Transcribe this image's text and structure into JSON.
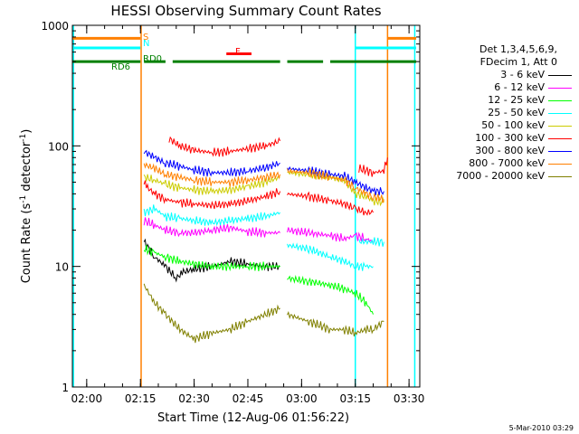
{
  "chart_data": {
    "type": "line",
    "title": "HESSI Observing Summary Count Rates",
    "xlabel": "Start Time (12-Aug-06 01:56:22)",
    "ylabel_prefix": "Count Rate (s",
    "ylabel_sup1": "-1",
    "ylabel_mid": " detector",
    "ylabel_sup2": "-1",
    "ylabel_suffix": ")",
    "yscale": "log",
    "ylim": [
      1,
      1000
    ],
    "xlim_minutes": [
      116,
      213
    ],
    "xticks": [
      {
        "label": "02:00",
        "minute": 120
      },
      {
        "label": "02:15",
        "minute": 135
      },
      {
        "label": "02:30",
        "minute": 150
      },
      {
        "label": "02:45",
        "minute": 165
      },
      {
        "label": "03:00",
        "minute": 180
      },
      {
        "label": "03:15",
        "minute": 195
      },
      {
        "label": "03:30",
        "minute": 210
      }
    ],
    "yticks": [
      {
        "label": "1",
        "value": 1
      },
      {
        "label": "10",
        "value": 10
      },
      {
        "label": "100",
        "value": 100
      },
      {
        "label": "1000",
        "value": 1000
      }
    ],
    "legend_header": [
      "Det 1,3,4,5,6,9,",
      "FDecim 1, Att 0"
    ],
    "series": [
      {
        "name": "3 - 6 keV",
        "color": "#000000",
        "segments": [
          [
            [
              136,
              16
            ],
            [
              139,
              12
            ],
            [
              142,
              10
            ],
            [
              145,
              8
            ],
            [
              147,
              9
            ],
            [
              150,
              9.5
            ],
            [
              155,
              10
            ],
            [
              160,
              11
            ],
            [
              165,
              10.5
            ],
            [
              170,
              10
            ],
            [
              174,
              10
            ]
          ]
        ]
      },
      {
        "name": "6 - 12 keV",
        "color": "#ff00ff",
        "segments": [
          [
            [
              136,
              24
            ],
            [
              139,
              22
            ],
            [
              142,
              20
            ],
            [
              146,
              19
            ],
            [
              150,
              19
            ],
            [
              155,
              20
            ],
            [
              160,
              21
            ],
            [
              165,
              19.5
            ],
            [
              170,
              19
            ],
            [
              174,
              19
            ]
          ],
          [
            [
              176,
              20
            ],
            [
              182,
              19
            ],
            [
              188,
              18
            ],
            [
              192,
              17
            ],
            [
              195,
              18
            ],
            [
              198,
              17
            ],
            [
              200,
              16
            ]
          ]
        ]
      },
      {
        "name": "12 - 25 keV",
        "color": "#00ff00",
        "segments": [
          [
            [
              136,
              14
            ],
            [
              139,
              13
            ],
            [
              142,
              12
            ],
            [
              146,
              11
            ],
            [
              150,
              10.5
            ],
            [
              155,
              10
            ],
            [
              160,
              10
            ],
            [
              165,
              10
            ],
            [
              170,
              10
            ],
            [
              174,
              10
            ]
          ],
          [
            [
              176,
              8
            ],
            [
              182,
              7.5
            ],
            [
              188,
              7
            ],
            [
              192,
              6.5
            ],
            [
              195,
              6
            ],
            [
              198,
              5
            ],
            [
              200,
              4
            ]
          ]
        ]
      },
      {
        "name": "25 - 50 keV",
        "color": "#00ffff",
        "segments": [
          [
            [
              136,
              28
            ],
            [
              139,
              30
            ],
            [
              142,
              26
            ],
            [
              146,
              25
            ],
            [
              150,
              24
            ],
            [
              155,
              23
            ],
            [
              160,
              24
            ],
            [
              165,
              25
            ],
            [
              170,
              26
            ],
            [
              174,
              28
            ]
          ],
          [
            [
              176,
              15
            ],
            [
              182,
              14
            ],
            [
              188,
              12
            ],
            [
              192,
              11
            ],
            [
              195,
              10
            ],
            [
              198,
              10
            ],
            [
              200,
              10
            ]
          ],
          [
            [
              196,
              16
            ],
            [
              200,
              16
            ],
            [
              203,
              16
            ]
          ]
        ]
      },
      {
        "name": "50 - 100 keV",
        "color": "#cccc00",
        "segments": [
          [
            [
              136,
              55
            ],
            [
              139,
              52
            ],
            [
              142,
              48
            ],
            [
              146,
              45
            ],
            [
              150,
              43
            ],
            [
              155,
              42
            ],
            [
              160,
              43
            ],
            [
              165,
              46
            ],
            [
              170,
              50
            ],
            [
              174,
              55
            ]
          ],
          [
            [
              176,
              60
            ],
            [
              182,
              58
            ],
            [
              188,
              55
            ],
            [
              192,
              52
            ],
            [
              195,
              40
            ],
            [
              198,
              38
            ],
            [
              200,
              35
            ],
            [
              203,
              34
            ]
          ]
        ]
      },
      {
        "name": "100 - 300 keV",
        "color": "#ff0000",
        "segments": [
          [
            [
              136,
              50
            ],
            [
              137,
              45
            ],
            [
              139,
              40
            ],
            [
              142,
              36
            ],
            [
              146,
              34
            ],
            [
              150,
              33
            ],
            [
              155,
              32
            ],
            [
              160,
              33
            ],
            [
              165,
              35
            ],
            [
              170,
              38
            ],
            [
              174,
              42
            ]
          ],
          [
            [
              176,
              40
            ],
            [
              182,
              38
            ],
            [
              188,
              35
            ],
            [
              192,
              33
            ],
            [
              195,
              30
            ],
            [
              198,
              28
            ],
            [
              200,
              28
            ]
          ],
          [
            [
              143,
              115
            ],
            [
              146,
              100
            ],
            [
              150,
              92
            ],
            [
              155,
              88
            ],
            [
              160,
              90
            ],
            [
              165,
              95
            ],
            [
              170,
              100
            ],
            [
              174,
              110
            ]
          ],
          [
            [
              196,
              65
            ],
            [
              200,
              60
            ],
            [
              203,
              62
            ],
            [
              204,
              80
            ]
          ]
        ]
      },
      {
        "name": "300 - 800 keV",
        "color": "#0000ff",
        "segments": [
          [
            [
              136,
              90
            ],
            [
              139,
              80
            ],
            [
              142,
              72
            ],
            [
              146,
              68
            ],
            [
              150,
              63
            ],
            [
              155,
              60
            ],
            [
              160,
              60
            ],
            [
              165,
              62
            ],
            [
              170,
              66
            ],
            [
              174,
              72
            ]
          ],
          [
            [
              176,
              65
            ],
            [
              182,
              62
            ],
            [
              188,
              58
            ],
            [
              192,
              56
            ],
            [
              195,
              50
            ],
            [
              198,
              45
            ],
            [
              200,
              42
            ],
            [
              203,
              42
            ]
          ]
        ]
      },
      {
        "name": "800 - 7000 keV",
        "color": "#ff8000",
        "segments": [
          [
            [
              136,
              70
            ],
            [
              139,
              65
            ],
            [
              142,
              58
            ],
            [
              146,
              55
            ],
            [
              150,
              52
            ],
            [
              155,
              50
            ],
            [
              160,
              50
            ],
            [
              165,
              52
            ],
            [
              170,
              55
            ],
            [
              174,
              58
            ]
          ],
          [
            [
              176,
              62
            ],
            [
              182,
              60
            ],
            [
              188,
              55
            ],
            [
              192,
              52
            ],
            [
              195,
              45
            ],
            [
              198,
              40
            ],
            [
              200,
              38
            ],
            [
              203,
              36
            ]
          ]
        ]
      },
      {
        "name": "7000 - 20000 keV",
        "color": "#808000",
        "segments": [
          [
            [
              136,
              7
            ],
            [
              139,
              5
            ],
            [
              142,
              4
            ],
            [
              146,
              3
            ],
            [
              150,
              2.5
            ],
            [
              155,
              2.8
            ],
            [
              160,
              3
            ],
            [
              165,
              3.5
            ],
            [
              170,
              4
            ],
            [
              174,
              4.5
            ]
          ],
          [
            [
              176,
              4
            ],
            [
              182,
              3.5
            ],
            [
              188,
              3
            ],
            [
              192,
              3
            ],
            [
              195,
              2.8
            ],
            [
              198,
              3
            ],
            [
              200,
              3
            ],
            [
              203,
              3.5
            ]
          ]
        ]
      }
    ],
    "markers": [
      {
        "label": "S",
        "color": "#ff8000",
        "segments": [
          [
            116,
            135
          ],
          [
            204,
            212
          ]
        ],
        "y": 780
      },
      {
        "label": "N",
        "color": "#00ffff",
        "segments": [
          [
            116,
            135
          ],
          [
            195,
            212
          ]
        ],
        "y": 650
      },
      {
        "label": "RD0",
        "color": "#008000",
        "segments": [
          [
            136,
            142
          ],
          [
            144,
            174
          ],
          [
            176,
            186
          ],
          [
            188,
            212
          ]
        ],
        "y": 500
      },
      {
        "label": "RD6",
        "color": "#008000",
        "segments": [
          [
            116,
            135
          ]
        ],
        "y": 500
      },
      {
        "label": "F",
        "color": "#ff0000",
        "segments": [
          [
            159,
            166
          ]
        ],
        "y": 580
      }
    ],
    "vlines": [
      {
        "minute": 116.3,
        "color": "#00ffff"
      },
      {
        "minute": 135.2,
        "color": "#ff8000"
      },
      {
        "minute": 195,
        "color": "#00ffff"
      },
      {
        "minute": 204,
        "color": "#ff8000"
      },
      {
        "minute": 211.6,
        "color": "#00ffff"
      }
    ],
    "grid": false,
    "legend_position": "right",
    "footer_date": "5-Mar-2010 03:29"
  }
}
